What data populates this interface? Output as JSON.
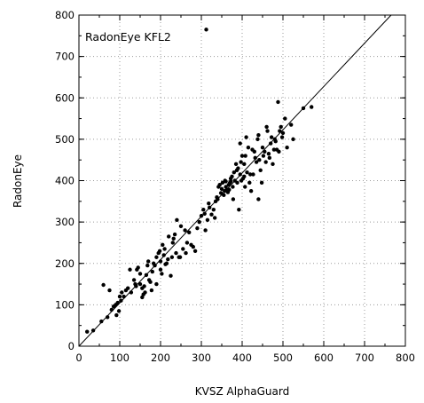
{
  "chart_data": {
    "type": "scatter",
    "title": "",
    "xlabel": "KVSZ AlphaGuard",
    "ylabel": "RadonEye",
    "xlim": [
      0,
      800
    ],
    "ylim": [
      0,
      800
    ],
    "x_ticks": [
      0,
      100,
      200,
      300,
      400,
      500,
      600,
      700,
      800
    ],
    "y_ticks": [
      0,
      100,
      200,
      300,
      400,
      500,
      600,
      700,
      800
    ],
    "grid": "dotted",
    "annotation": "RadonEye KFL2",
    "fit_line": {
      "x": [
        0,
        765
      ],
      "y": [
        0,
        800
      ]
    },
    "point_color": "#000000",
    "points": [
      [
        20,
        35
      ],
      [
        35,
        38
      ],
      [
        55,
        60
      ],
      [
        60,
        148
      ],
      [
        70,
        70
      ],
      [
        75,
        135
      ],
      [
        80,
        88
      ],
      [
        85,
        96
      ],
      [
        90,
        100
      ],
      [
        92,
        75
      ],
      [
        95,
        105
      ],
      [
        98,
        85
      ],
      [
        100,
        120
      ],
      [
        103,
        110
      ],
      [
        105,
        130
      ],
      [
        110,
        120
      ],
      [
        115,
        135
      ],
      [
        120,
        140
      ],
      [
        125,
        185
      ],
      [
        128,
        130
      ],
      [
        135,
        160
      ],
      [
        138,
        150
      ],
      [
        140,
        145
      ],
      [
        142,
        185
      ],
      [
        145,
        190
      ],
      [
        150,
        175
      ],
      [
        150,
        150
      ],
      [
        155,
        140
      ],
      [
        155,
        118
      ],
      [
        158,
        125
      ],
      [
        160,
        145
      ],
      [
        162,
        130
      ],
      [
        165,
        172
      ],
      [
        168,
        195
      ],
      [
        170,
        205
      ],
      [
        172,
        160
      ],
      [
        175,
        155
      ],
      [
        178,
        135
      ],
      [
        180,
        180
      ],
      [
        183,
        200
      ],
      [
        186,
        195
      ],
      [
        190,
        215
      ],
      [
        190,
        150
      ],
      [
        195,
        225
      ],
      [
        198,
        230
      ],
      [
        200,
        185
      ],
      [
        200,
        205
      ],
      [
        203,
        175
      ],
      [
        205,
        245
      ],
      [
        208,
        220
      ],
      [
        210,
        235
      ],
      [
        212,
        198
      ],
      [
        215,
        200
      ],
      [
        218,
        210
      ],
      [
        220,
        265
      ],
      [
        225,
        170
      ],
      [
        228,
        215
      ],
      [
        230,
        250
      ],
      [
        232,
        260
      ],
      [
        235,
        270
      ],
      [
        238,
        225
      ],
      [
        240,
        305
      ],
      [
        245,
        215
      ],
      [
        248,
        215
      ],
      [
        250,
        290
      ],
      [
        255,
        235
      ],
      [
        260,
        280
      ],
      [
        262,
        225
      ],
      [
        265,
        250
      ],
      [
        270,
        275
      ],
      [
        275,
        245
      ],
      [
        280,
        240
      ],
      [
        285,
        230
      ],
      [
        290,
        285
      ],
      [
        295,
        300
      ],
      [
        300,
        315
      ],
      [
        305,
        330
      ],
      [
        308,
        320
      ],
      [
        310,
        280
      ],
      [
        312,
        765
      ],
      [
        315,
        305
      ],
      [
        318,
        345
      ],
      [
        320,
        335
      ],
      [
        325,
        318
      ],
      [
        330,
        330
      ],
      [
        333,
        310
      ],
      [
        335,
        350
      ],
      [
        338,
        360
      ],
      [
        340,
        355
      ],
      [
        342,
        385
      ],
      [
        345,
        390
      ],
      [
        348,
        370
      ],
      [
        350,
        380
      ],
      [
        352,
        395
      ],
      [
        355,
        365
      ],
      [
        357,
        375
      ],
      [
        358,
        400
      ],
      [
        360,
        385
      ],
      [
        362,
        378
      ],
      [
        365,
        372
      ],
      [
        367,
        390
      ],
      [
        370,
        395
      ],
      [
        372,
        405
      ],
      [
        375,
        410
      ],
      [
        377,
        385
      ],
      [
        378,
        355
      ],
      [
        380,
        420
      ],
      [
        382,
        400
      ],
      [
        385,
        440
      ],
      [
        387,
        425
      ],
      [
        388,
        395
      ],
      [
        390,
        430
      ],
      [
        392,
        330
      ],
      [
        395,
        415
      ],
      [
        397,
        445
      ],
      [
        398,
        400
      ],
      [
        400,
        460
      ],
      [
        402,
        405
      ],
      [
        405,
        440
      ],
      [
        407,
        385
      ],
      [
        408,
        460
      ],
      [
        410,
        505
      ],
      [
        412,
        420
      ],
      [
        415,
        480
      ],
      [
        418,
        395
      ],
      [
        420,
        415
      ],
      [
        422,
        375
      ],
      [
        425,
        475
      ],
      [
        427,
        415
      ],
      [
        430,
        470
      ],
      [
        432,
        455
      ],
      [
        435,
        445
      ],
      [
        438,
        500
      ],
      [
        440,
        510
      ],
      [
        442,
        450
      ],
      [
        445,
        425
      ],
      [
        448,
        395
      ],
      [
        450,
        480
      ],
      [
        452,
        460
      ],
      [
        455,
        470
      ],
      [
        458,
        445
      ],
      [
        460,
        530
      ],
      [
        462,
        520
      ],
      [
        465,
        465
      ],
      [
        467,
        455
      ],
      [
        470,
        490
      ],
      [
        472,
        505
      ],
      [
        475,
        440
      ],
      [
        478,
        475
      ],
      [
        480,
        500
      ],
      [
        482,
        495
      ],
      [
        485,
        475
      ],
      [
        488,
        590
      ],
      [
        490,
        470
      ],
      [
        492,
        520
      ],
      [
        495,
        530
      ],
      [
        498,
        505
      ],
      [
        500,
        515
      ],
      [
        505,
        550
      ],
      [
        510,
        480
      ],
      [
        520,
        535
      ],
      [
        525,
        500
      ],
      [
        550,
        575
      ],
      [
        570,
        578
      ],
      [
        440,
        355
      ],
      [
        395,
        490
      ],
      [
        405,
        410
      ],
      [
        372,
        398
      ],
      [
        360,
        398
      ],
      [
        368,
        378
      ]
    ]
  }
}
